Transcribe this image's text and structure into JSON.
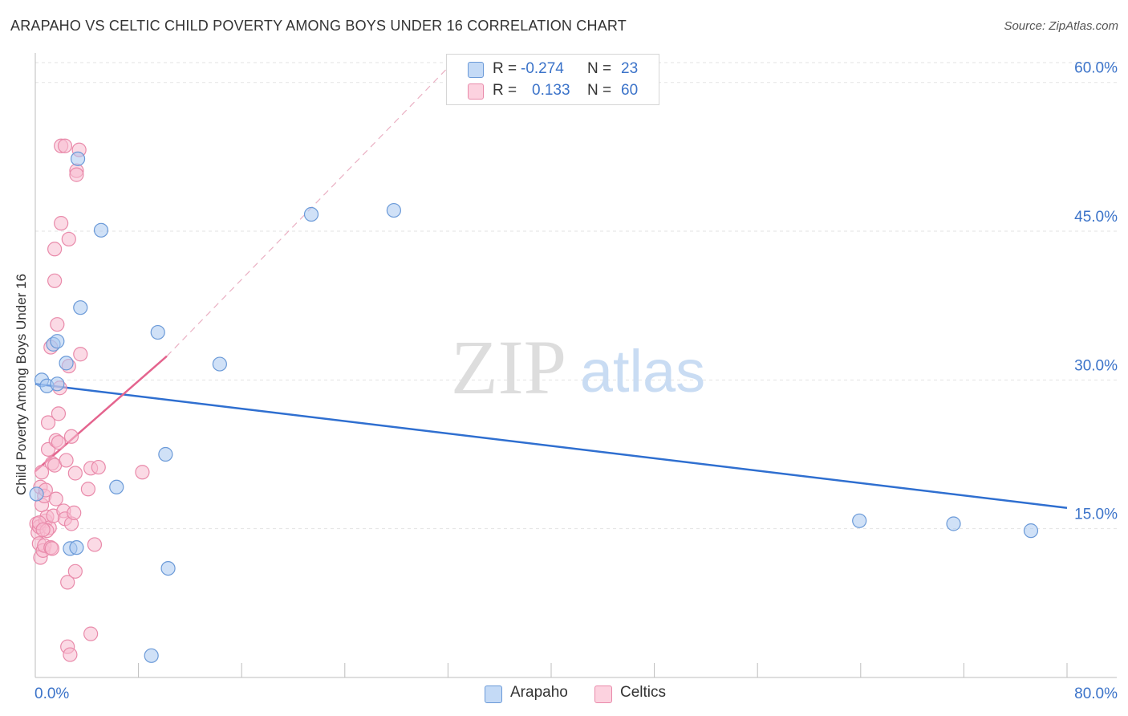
{
  "title": "ARAPAHO VS CELTIC CHILD POVERTY AMONG BOYS UNDER 16 CORRELATION CHART",
  "source": "Source: ZipAtlas.com",
  "watermark": {
    "zip": "ZIP",
    "atlas": "atlas"
  },
  "legend": {
    "rows": [
      {
        "r_label": "R =",
        "r_value": "-0.274",
        "n_label": "N =",
        "n_value": "23"
      },
      {
        "r_label": "R =",
        "r_value": "0.133",
        "n_label": "N =",
        "n_value": "60"
      }
    ]
  },
  "bottom_legend": [
    {
      "label": "Arapaho"
    },
    {
      "label": "Celtics"
    }
  ],
  "colors": {
    "arapaho_fill": "#a9c8f0",
    "arapaho_stroke": "#6b9ad8",
    "arapaho_line": "#2f6fd0",
    "celtics_fill": "#f8bcd0",
    "celtics_stroke": "#e98aaa",
    "celtics_line": "#e4648e",
    "axis_text": "#3b73c9",
    "grid": "#e3e3e3"
  },
  "chart_data": {
    "type": "scatter",
    "title": "ARAPAHO VS CELTIC CHILD POVERTY AMONG BOYS UNDER 16 CORRELATION CHART",
    "xlabel": "",
    "ylabel": "Child Poverty Among Boys Under 16",
    "xlim": [
      0,
      80
    ],
    "ylim": [
      0,
      62
    ],
    "x_tick_labels": [
      {
        "value": 0,
        "label": "0.0%"
      },
      {
        "value": 80,
        "label": "80.0%"
      }
    ],
    "y_tick_labels": [
      {
        "value": 15,
        "label": "15.0%"
      },
      {
        "value": 30,
        "label": "30.0%"
      },
      {
        "value": 45,
        "label": "45.0%"
      },
      {
        "value": 60,
        "label": "60.0%"
      }
    ],
    "x_minor_ticks": [
      0,
      8,
      16,
      24,
      32,
      40,
      48,
      56,
      64,
      72,
      80
    ],
    "series": [
      {
        "name": "Arapaho",
        "R": -0.274,
        "N": 23,
        "points": [
          [
            0.1,
            18.5
          ],
          [
            0.5,
            30.0
          ],
          [
            0.9,
            29.4
          ],
          [
            1.4,
            33.6
          ],
          [
            1.7,
            33.9
          ],
          [
            1.7,
            29.6
          ],
          [
            2.4,
            31.7
          ],
          [
            2.7,
            13.0
          ],
          [
            3.2,
            13.1
          ],
          [
            3.5,
            37.3
          ],
          [
            3.3,
            52.3
          ],
          [
            5.1,
            45.1
          ],
          [
            6.3,
            19.2
          ],
          [
            9.5,
            34.8
          ],
          [
            10.1,
            22.5
          ],
          [
            10.3,
            11.0
          ],
          [
            9.0,
            2.2
          ],
          [
            14.3,
            31.6
          ],
          [
            21.4,
            46.7
          ],
          [
            27.8,
            47.1
          ],
          [
            63.9,
            15.8
          ],
          [
            71.2,
            15.5
          ],
          [
            77.2,
            14.8
          ]
        ],
        "trend": {
          "x0": 0,
          "y0": 29.6,
          "x1": 80,
          "y1": 17.1
        }
      },
      {
        "name": "Celtics",
        "R": 0.133,
        "N": 60,
        "points": [
          [
            0.1,
            15.5
          ],
          [
            0.2,
            14.6
          ],
          [
            0.3,
            15.2
          ],
          [
            0.3,
            13.5
          ],
          [
            0.4,
            12.1
          ],
          [
            0.4,
            19.2
          ],
          [
            0.5,
            17.4
          ],
          [
            0.5,
            20.7
          ],
          [
            0.6,
            12.8
          ],
          [
            0.7,
            18.3
          ],
          [
            0.7,
            13.3
          ],
          [
            0.8,
            18.9
          ],
          [
            0.8,
            15.8
          ],
          [
            0.9,
            16.2
          ],
          [
            1.0,
            23.0
          ],
          [
            1.0,
            25.7
          ],
          [
            1.1,
            15.1
          ],
          [
            1.2,
            33.3
          ],
          [
            1.2,
            13.1
          ],
          [
            1.3,
            21.6
          ],
          [
            1.4,
            16.3
          ],
          [
            1.5,
            21.4
          ],
          [
            1.5,
            43.2
          ],
          [
            1.5,
            40.0
          ],
          [
            1.6,
            23.9
          ],
          [
            1.6,
            18.0
          ],
          [
            1.7,
            35.6
          ],
          [
            1.8,
            26.6
          ],
          [
            1.8,
            23.7
          ],
          [
            1.9,
            29.2
          ],
          [
            2.0,
            53.6
          ],
          [
            2.0,
            45.8
          ],
          [
            2.2,
            16.8
          ],
          [
            2.3,
            16.0
          ],
          [
            2.3,
            53.6
          ],
          [
            2.4,
            21.9
          ],
          [
            2.5,
            9.6
          ],
          [
            2.5,
            3.1
          ],
          [
            2.6,
            31.4
          ],
          [
            2.6,
            44.2
          ],
          [
            2.7,
            2.3
          ],
          [
            2.8,
            15.5
          ],
          [
            2.8,
            24.3
          ],
          [
            3.0,
            16.6
          ],
          [
            3.1,
            20.6
          ],
          [
            3.1,
            10.7
          ],
          [
            3.2,
            51.1
          ],
          [
            3.2,
            50.7
          ],
          [
            3.4,
            53.2
          ],
          [
            3.5,
            32.6
          ],
          [
            4.1,
            19.0
          ],
          [
            4.3,
            21.1
          ],
          [
            4.3,
            4.4
          ],
          [
            4.6,
            13.4
          ],
          [
            4.9,
            21.2
          ],
          [
            8.3,
            20.7
          ],
          [
            0.3,
            15.6
          ],
          [
            0.9,
            14.8
          ],
          [
            1.3,
            13.0
          ],
          [
            0.6,
            14.9
          ]
        ],
        "trend": {
          "x0": 0,
          "y0": 20.8,
          "x1": 10.2,
          "y1": 32.4
        },
        "trend_dashed": {
          "x0": 10.2,
          "y0": 32.4,
          "x1": 32.0,
          "y1": 61.5
        }
      }
    ]
  }
}
